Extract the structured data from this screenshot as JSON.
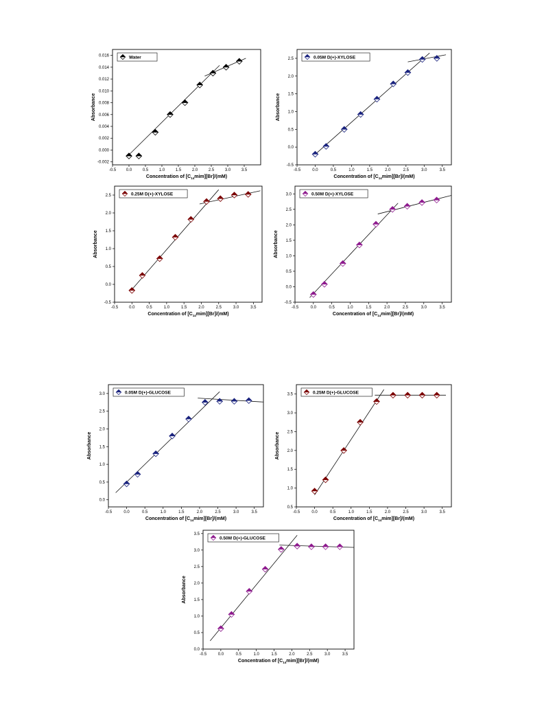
{
  "marker_colors": {
    "Water": "#000000",
    "0.05M D(+)-XYLOSE": "#1a237e",
    "0.25M D(+)-XYLOSE": "#7b0000",
    "0.50M D(+)-XYLOSE": "#8e1b8e",
    "0.05M D(+)-GLUCOSE": "#1a237e",
    "0.25M D(+)-GLUCOSE": "#7b0000",
    "0.50M D(+)-GLUCOSE": "#8e1b8e"
  },
  "chart_data": [
    {
      "type": "scatter",
      "legend": "Water",
      "ylabel": "Absorbance",
      "xlabel": {
        "pre": "Concentration of [C",
        "sub": "14",
        "post": "mim][Br]/(mM)"
      },
      "xlim": [
        -0.5,
        4.0
      ],
      "ylim": [
        -0.0025,
        0.017
      ],
      "xticks": [
        "-0.5",
        "0.0",
        "0.5",
        "1.0",
        "1.5",
        "2.0",
        "2.5",
        "3.0",
        "3.5"
      ],
      "yticks": [
        "-0.002",
        "0.000",
        "0.002",
        "0.004",
        "0.006",
        "0.008",
        "0.010",
        "0.012",
        "0.014",
        "0.016"
      ],
      "x": [
        0.0,
        0.3,
        0.8,
        1.25,
        1.7,
        2.15,
        2.55,
        2.95,
        3.35
      ],
      "y": [
        -0.001,
        -0.001,
        0.003,
        0.006,
        0.008,
        0.011,
        0.013,
        0.014,
        0.015
      ],
      "fit_lines": [
        [
          [
            0.0,
            -0.0008
          ],
          [
            2.75,
            0.0143
          ]
        ],
        [
          [
            2.3,
            0.0125
          ],
          [
            3.55,
            0.0155
          ]
        ]
      ]
    },
    {
      "type": "scatter",
      "legend": "0.05M D(+)-XYLOSE",
      "ylabel": "Absorbance",
      "xlabel": {
        "pre": "Concentration of [C",
        "sub": "14",
        "post": "mim][Br]/(mM)"
      },
      "xlim": [
        -0.5,
        3.75
      ],
      "ylim": [
        -0.5,
        2.75
      ],
      "xticks": [
        "-0.5",
        "0.0",
        "0.5",
        "1.0",
        "1.5",
        "2.0",
        "2.5",
        "3.0",
        "3.5"
      ],
      "yticks": [
        "-0.5",
        "0.0",
        "0.5",
        "1.0",
        "1.5",
        "2.0",
        "2.5"
      ],
      "x": [
        0.0,
        0.3,
        0.8,
        1.25,
        1.7,
        2.15,
        2.55,
        2.95,
        3.35
      ],
      "y": [
        -0.2,
        0.02,
        0.5,
        0.92,
        1.35,
        1.78,
        2.1,
        2.47,
        2.5
      ],
      "fit_lines": [
        [
          [
            -0.05,
            -0.25
          ],
          [
            3.15,
            2.65
          ]
        ],
        [
          [
            2.55,
            2.4
          ],
          [
            3.6,
            2.6
          ]
        ]
      ]
    },
    {
      "type": "scatter",
      "legend": "0.25M D(+)-XYLOSE",
      "ylabel": "Absorbance",
      "xlabel": {
        "pre": "Concentration of [C",
        "sub": "14",
        "post": "mim][Br]/(mM)"
      },
      "xlim": [
        -0.5,
        3.75
      ],
      "ylim": [
        -0.5,
        2.75
      ],
      "xticks": [
        "-0.5",
        "0.0",
        "0.5",
        "1.0",
        "1.5",
        "2.0",
        "2.5",
        "3.0",
        "3.5"
      ],
      "yticks": [
        "-0.5",
        "0.0",
        "0.5",
        "1.0",
        "1.5",
        "2.0",
        "2.5"
      ],
      "x": [
        0.0,
        0.3,
        0.8,
        1.25,
        1.7,
        2.15,
        2.55,
        2.95,
        3.35
      ],
      "y": [
        -0.17,
        0.25,
        0.72,
        1.32,
        1.82,
        2.32,
        2.4,
        2.5,
        2.52
      ],
      "fit_lines": [
        [
          [
            -0.05,
            -0.2
          ],
          [
            2.5,
            2.65
          ]
        ],
        [
          [
            1.95,
            2.25
          ],
          [
            3.7,
            2.62
          ]
        ]
      ]
    },
    {
      "type": "scatter",
      "legend": "0.50M D(+)-XYLOSE",
      "ylabel": "Absorbance",
      "xlabel": {
        "pre": "Concentration of [C",
        "sub": "14",
        "post": "mim][Br]/(mM)"
      },
      "xlim": [
        -0.5,
        3.75
      ],
      "ylim": [
        -0.5,
        3.25
      ],
      "xticks": [
        "-0.5",
        "0.0",
        "0.5",
        "1.0",
        "1.5",
        "2.0",
        "2.5",
        "3.0",
        "3.5"
      ],
      "yticks": [
        "-0.5",
        "0.0",
        "0.5",
        "1.0",
        "1.5",
        "2.0",
        "2.5",
        "3.0"
      ],
      "x": [
        0.0,
        0.3,
        0.8,
        1.25,
        1.7,
        2.15,
        2.55,
        2.95,
        3.35
      ],
      "y": [
        -0.25,
        0.08,
        0.75,
        1.35,
        2.02,
        2.5,
        2.6,
        2.72,
        2.8
      ],
      "fit_lines": [
        [
          [
            -0.1,
            -0.35
          ],
          [
            2.3,
            2.7
          ]
        ],
        [
          [
            1.75,
            2.35
          ],
          [
            3.75,
            2.95
          ]
        ]
      ]
    },
    {
      "type": "scatter",
      "legend": "0.05M D(+)-GLUCOSE",
      "ylabel": "Absorbance",
      "xlabel": {
        "pre": "Concentration of [C",
        "sub": "14",
        "post": "mim][Br]/(mM)"
      },
      "xlim": [
        -0.5,
        3.75
      ],
      "ylim": [
        -0.2,
        3.25
      ],
      "xticks": [
        "-0.5",
        "0.0",
        "0.5",
        "1.0",
        "1.5",
        "2.0",
        "2.5",
        "3.0",
        "3.5"
      ],
      "yticks": [
        "0.0",
        "0.5",
        "1.0",
        "1.5",
        "2.0",
        "2.5",
        "3.0"
      ],
      "x": [
        0.0,
        0.3,
        0.8,
        1.25,
        1.7,
        2.15,
        2.55,
        2.95,
        3.35
      ],
      "y": [
        0.45,
        0.72,
        1.3,
        1.8,
        2.28,
        2.75,
        2.78,
        2.78,
        2.8
      ],
      "fit_lines": [
        [
          [
            -0.3,
            0.2
          ],
          [
            2.55,
            3.05
          ]
        ],
        [
          [
            1.95,
            2.87
          ],
          [
            3.75,
            2.76
          ]
        ]
      ]
    },
    {
      "type": "scatter",
      "legend": "0.25M D(+)-GLUCOSE",
      "ylabel": "Absorbance",
      "xlabel": {
        "pre": "Concentration of [C",
        "sub": "14",
        "post": "mim][Br]/(mM)"
      },
      "xlim": [
        -0.5,
        3.75
      ],
      "ylim": [
        0.5,
        3.75
      ],
      "xticks": [
        "-0.5",
        "0.0",
        "0.5",
        "1.0",
        "1.5",
        "2.0",
        "2.5",
        "3.0",
        "3.5"
      ],
      "yticks": [
        "0.5",
        "1.0",
        "1.5",
        "2.0",
        "2.5",
        "3.0",
        "3.5"
      ],
      "x": [
        0.0,
        0.3,
        0.8,
        1.25,
        1.7,
        2.15,
        2.55,
        2.95,
        3.35
      ],
      "y": [
        0.92,
        1.22,
        2.0,
        2.75,
        3.3,
        3.47,
        3.47,
        3.47,
        3.47
      ],
      "fit_lines": [
        [
          [
            0.0,
            0.82
          ],
          [
            1.9,
            3.62
          ]
        ],
        [
          [
            1.65,
            3.47
          ],
          [
            3.6,
            3.47
          ]
        ]
      ]
    },
    {
      "type": "scatter",
      "legend": "0.50M D(+)-GLUCOSE",
      "ylabel": "Absorbance",
      "xlabel": {
        "pre": "Concentration of [C",
        "sub": "14",
        "post": "mim][Br]/(mM)"
      },
      "xlim": [
        -0.5,
        3.75
      ],
      "ylim": [
        0.0,
        3.6
      ],
      "xticks": [
        "-0.5",
        "0.0",
        "0.5",
        "1.0",
        "1.5",
        "2.0",
        "2.5",
        "3.0",
        "3.5"
      ],
      "yticks": [
        "0.0",
        "0.5",
        "1.0",
        "1.5",
        "2.0",
        "2.5",
        "3.0",
        "3.5"
      ],
      "x": [
        0.0,
        0.3,
        0.8,
        1.25,
        1.7,
        2.15,
        2.55,
        2.95,
        3.35
      ],
      "y": [
        0.62,
        1.05,
        1.75,
        2.42,
        3.02,
        3.12,
        3.1,
        3.1,
        3.1
      ],
      "fit_lines": [
        [
          [
            -0.3,
            0.25
          ],
          [
            2.15,
            3.45
          ]
        ],
        [
          [
            1.65,
            3.15
          ],
          [
            3.75,
            3.08
          ]
        ]
      ]
    }
  ]
}
